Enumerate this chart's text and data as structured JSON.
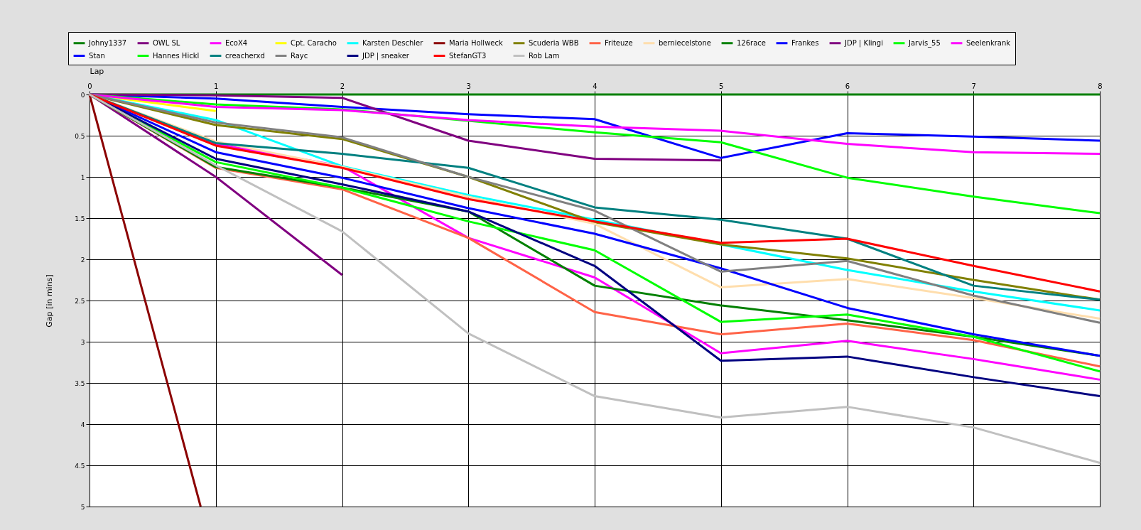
{
  "chart_data": {
    "type": "line",
    "xlabel": "Lap",
    "ylabel": "Gap [in mins]",
    "x": [
      0,
      1,
      2,
      3,
      4,
      5,
      6,
      7,
      8
    ],
    "xlim": [
      0,
      8
    ],
    "xticks": [
      0,
      1,
      2,
      3,
      4,
      5,
      6,
      7,
      8
    ],
    "ylim": [
      5,
      0
    ],
    "yticks": [
      0,
      0.5,
      1,
      1.5,
      2,
      2.5,
      3,
      3.5,
      4,
      4.5,
      5
    ],
    "grid": true,
    "legend": "top",
    "series": [
      {
        "name": "Johny1337",
        "color": "#008000",
        "values": [
          0,
          0,
          0,
          0,
          0,
          0,
          0,
          0,
          0
        ]
      },
      {
        "name": "OWL SL",
        "color": "#800080",
        "values": [
          0,
          1.0,
          2.19,
          null,
          null,
          null,
          null,
          null,
          null
        ]
      },
      {
        "name": "EcoX4",
        "color": "#ff00ff",
        "values": [
          0,
          0.6,
          0.87,
          1.74,
          2.22,
          3.14,
          2.99,
          3.21,
          3.46
        ]
      },
      {
        "name": "Cpt. Caracho",
        "color": "#ffff00",
        "values": [
          0,
          0.2,
          null,
          null,
          null,
          null,
          null,
          null,
          null
        ]
      },
      {
        "name": "Karsten Deschler",
        "color": "#00ffff",
        "values": [
          0,
          0.31,
          0.87,
          1.22,
          1.52,
          1.82,
          2.13,
          2.39,
          2.62
        ]
      },
      {
        "name": "Maria Hollweck",
        "color": "#8b0000",
        "x": [
          0,
          0.88
        ],
        "values": [
          0,
          5
        ]
      },
      {
        "name": "Scuderia WBB",
        "color": "#808000",
        "values": [
          0,
          0.37,
          0.54,
          1.0,
          1.55,
          1.82,
          1.99,
          2.25,
          2.49
        ]
      },
      {
        "name": "Friteuze",
        "color": "#ff6347",
        "values": [
          0,
          0.89,
          1.15,
          1.74,
          2.64,
          2.91,
          2.78,
          2.98,
          3.3
        ]
      },
      {
        "name": "berniecelstone",
        "color": "#ffdead",
        "values": [
          0,
          0.57,
          0.88,
          1.24,
          1.57,
          2.34,
          2.24,
          2.47,
          2.72
        ]
      },
      {
        "name": "126race",
        "color": "#008000",
        "values": [
          0,
          0.88,
          1.13,
          1.42,
          2.32,
          2.56,
          2.74,
          2.94,
          3.17
        ]
      },
      {
        "name": "Frankes",
        "color": "#0000ff",
        "values": [
          0,
          0.05,
          0.15,
          0.24,
          0.3,
          0.77,
          0.47,
          0.51,
          0.56
        ]
      },
      {
        "name": "JDP | Klingi",
        "color": "#800080",
        "values": [
          0,
          0.01,
          0.04,
          0.56,
          0.78,
          0.8,
          null,
          null,
          null
        ]
      },
      {
        "name": "Jarvis_55",
        "color": "#00ff00",
        "values": [
          0,
          0.12,
          0.18,
          0.32,
          0.46,
          0.58,
          1.01,
          1.24,
          1.44
        ]
      },
      {
        "name": "Seelenkrank",
        "color": "#ff00ff",
        "values": [
          0,
          0.15,
          0.19,
          0.31,
          0.39,
          0.44,
          0.6,
          0.7,
          0.72
        ]
      },
      {
        "name": "Stan",
        "color": "#0000ff",
        "values": [
          0,
          0.7,
          1.01,
          1.38,
          1.69,
          2.11,
          2.59,
          2.91,
          3.17
        ]
      },
      {
        "name": "Hannes Hickl",
        "color": "#00ff00",
        "values": [
          0,
          0.82,
          1.13,
          1.54,
          1.89,
          2.76,
          2.67,
          2.94,
          3.36
        ]
      },
      {
        "name": "creacherxd",
        "color": "#008080",
        "values": [
          0,
          0.59,
          0.72,
          0.89,
          1.37,
          1.52,
          1.75,
          2.32,
          2.49
        ]
      },
      {
        "name": "Rayc",
        "color": "#808080",
        "values": [
          0,
          0.34,
          0.52,
          1.0,
          1.41,
          2.15,
          2.02,
          2.44,
          2.77
        ]
      },
      {
        "name": "JDP | sneaker",
        "color": "#000080",
        "values": [
          0,
          0.78,
          1.09,
          1.42,
          2.08,
          3.23,
          3.18,
          3.43,
          3.66
        ]
      },
      {
        "name": "StefanGT3",
        "color": "#ff0000",
        "values": [
          0,
          0.62,
          0.89,
          1.27,
          1.54,
          1.8,
          1.75,
          2.08,
          2.39
        ]
      },
      {
        "name": "Rob Lam",
        "color": "#c0c0c0",
        "values": [
          0,
          0.86,
          1.66,
          2.9,
          3.66,
          3.92,
          3.79,
          4.04,
          4.47
        ]
      }
    ]
  }
}
